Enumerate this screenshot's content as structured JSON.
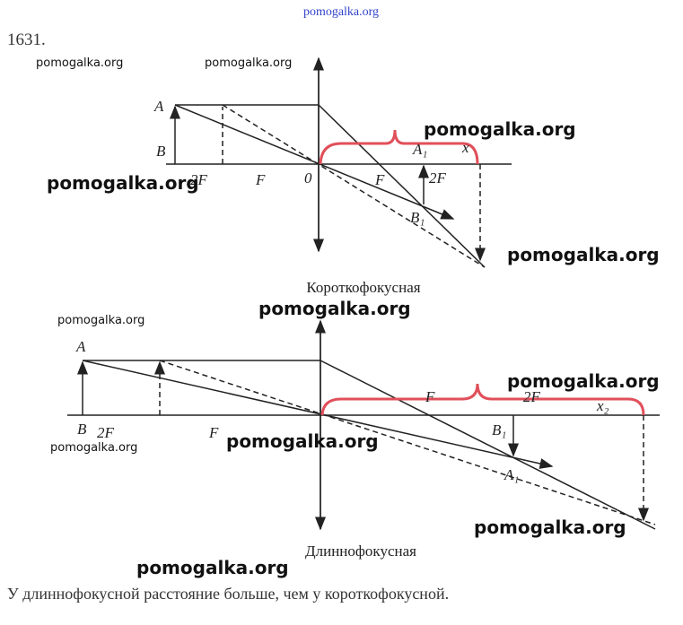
{
  "header": {
    "site": "pomogalka.org",
    "problem": "1631."
  },
  "watermarks": [
    "pomogalka.org",
    "pomogalka.org",
    "pomogalka.org",
    "pomogalka.org",
    "pomogalka.org",
    "pomogalka.org",
    "pomogalka.org",
    "pomogalka.org",
    "pomogalka.org",
    "pomogalka.org",
    "pomogalka.org",
    "pomogalka.org"
  ],
  "diagrams": [
    {
      "caption": "Короткофокусная",
      "labels": [
        "A",
        "B",
        "2F",
        "F",
        "0",
        "F",
        "2F",
        "A₁",
        "B₁",
        "x"
      ]
    },
    {
      "caption": "Длиннофокусная",
      "labels": [
        "A",
        "B",
        "2F",
        "F",
        "F",
        "2F",
        "B₁",
        "A₁",
        "x₂"
      ]
    }
  ],
  "answer": "У длиннофокусной расстояние больше, чем у короткофокусной."
}
